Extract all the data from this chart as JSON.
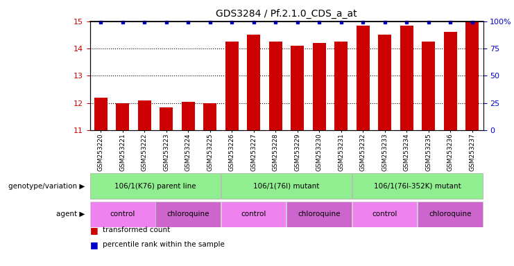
{
  "title": "GDS3284 / Pf.2.1.0_CDS_a_at",
  "samples": [
    "GSM253220",
    "GSM253221",
    "GSM253222",
    "GSM253223",
    "GSM253224",
    "GSM253225",
    "GSM253226",
    "GSM253227",
    "GSM253228",
    "GSM253229",
    "GSM253230",
    "GSM253231",
    "GSM253232",
    "GSM253233",
    "GSM253234",
    "GSM253235",
    "GSM253236",
    "GSM253237"
  ],
  "bar_values": [
    12.2,
    12.0,
    12.1,
    11.85,
    12.05,
    12.0,
    14.25,
    14.5,
    14.25,
    14.1,
    14.2,
    14.25,
    14.85,
    14.5,
    14.85,
    14.25,
    14.6,
    15.0
  ],
  "bar_color": "#CC0000",
  "percentile_color": "#0000CC",
  "ylim": [
    11,
    15
  ],
  "yticks": [
    11,
    12,
    13,
    14,
    15
  ],
  "right_ytick_labels": [
    "0",
    "25",
    "50",
    "75",
    "100%"
  ],
  "genotype_groups": [
    {
      "label": "106/1(K76) parent line",
      "start": 0,
      "end": 6,
      "color": "#90EE90"
    },
    {
      "label": "106/1(76I) mutant",
      "start": 6,
      "end": 12,
      "color": "#90EE90"
    },
    {
      "label": "106/1(76I-352K) mutant",
      "start": 12,
      "end": 18,
      "color": "#90EE90"
    }
  ],
  "agent_groups": [
    {
      "label": "control",
      "start": 0,
      "end": 3,
      "color": "#EE82EE"
    },
    {
      "label": "chloroquine",
      "start": 3,
      "end": 6,
      "color": "#CC66CC"
    },
    {
      "label": "control",
      "start": 6,
      "end": 9,
      "color": "#EE82EE"
    },
    {
      "label": "chloroquine",
      "start": 9,
      "end": 12,
      "color": "#CC66CC"
    },
    {
      "label": "control",
      "start": 12,
      "end": 15,
      "color": "#EE82EE"
    },
    {
      "label": "chloroquine",
      "start": 15,
      "end": 18,
      "color": "#CC66CC"
    }
  ],
  "genotype_label": "genotype/variation",
  "agent_label": "agent",
  "legend_items": [
    {
      "label": "transformed count",
      "color": "#CC0000",
      "marker": "s"
    },
    {
      "label": "percentile rank within the sample",
      "color": "#0000CC",
      "marker": "s"
    }
  ],
  "background_color": "#FFFFFF",
  "bar_width": 0.6,
  "tick_label_fontsize": 6.5,
  "title_fontsize": 10
}
